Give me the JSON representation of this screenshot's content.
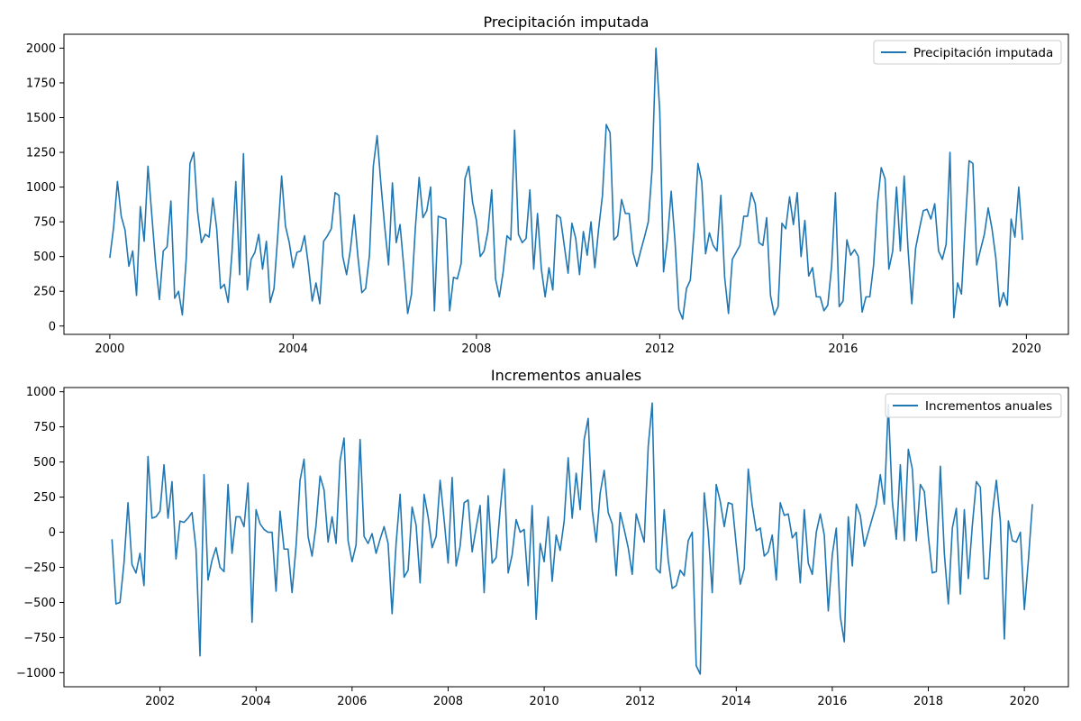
{
  "chart_data": [
    {
      "type": "line",
      "title": "Precipitación imputada",
      "xlabel": "",
      "ylabel": "",
      "x_start": "2000-01",
      "x_step": "month",
      "xlim": [
        "1999-01",
        "2020-12"
      ],
      "ylim": [
        -60,
        2100
      ],
      "xticks": [
        "2000",
        "2004",
        "2008",
        "2012",
        "2016",
        "2020"
      ],
      "yticks": [
        0,
        250,
        500,
        750,
        1000,
        1250,
        1500,
        1750,
        2000
      ],
      "legend": "top-right",
      "series": [
        {
          "name": "Precipitación imputada",
          "color": "#1f77b4",
          "values": [
            490,
            710,
            1040,
            790,
            690,
            430,
            540,
            220,
            860,
            610,
            1150,
            800,
            450,
            190,
            540,
            570,
            900,
            200,
            250,
            80,
            480,
            1170,
            1250,
            820,
            600,
            660,
            640,
            920,
            700,
            270,
            300,
            170,
            530,
            1040,
            370,
            1240,
            260,
            480,
            530,
            660,
            410,
            610,
            170,
            270,
            660,
            1080,
            720,
            600,
            420,
            530,
            540,
            650,
            440,
            180,
            310,
            160,
            610,
            650,
            700,
            960,
            940,
            500,
            370,
            550,
            800,
            490,
            240,
            270,
            510,
            1150,
            1370,
            1020,
            710,
            440,
            1030,
            600,
            730,
            420,
            90,
            230,
            700,
            1070,
            780,
            830,
            1000,
            110,
            790,
            780,
            770,
            110,
            350,
            340,
            450,
            1060,
            1150,
            890,
            760,
            500,
            540,
            680,
            980,
            340,
            210,
            390,
            650,
            620,
            1410,
            660,
            600,
            630,
            980,
            410,
            810,
            410,
            210,
            420,
            260,
            800,
            780,
            580,
            380,
            740,
            630,
            370,
            680,
            510,
            750,
            420,
            700,
            940,
            1450,
            1390,
            620,
            650,
            910,
            810,
            810,
            530,
            430,
            540,
            640,
            750,
            1130,
            2000,
            1550,
            390,
            620,
            970,
            610,
            120,
            50,
            270,
            330,
            690,
            1170,
            1040,
            520,
            670,
            580,
            540,
            940,
            350,
            90,
            480,
            530,
            580,
            790,
            790,
            960,
            880,
            600,
            580,
            780,
            220,
            80,
            140,
            740,
            700,
            930,
            730,
            960,
            500,
            760,
            360,
            420,
            210,
            210,
            110,
            150,
            430,
            960,
            140,
            180,
            620,
            510,
            550,
            500,
            100,
            210,
            210,
            440,
            880,
            1140,
            1060,
            410,
            540,
            1000,
            540,
            1080,
            560,
            160,
            560,
            700,
            830,
            840,
            770,
            880,
            540,
            480,
            590,
            1250,
            60,
            310,
            230,
            730,
            1190,
            1170,
            440,
            550,
            660,
            850,
            700,
            490,
            140,
            240,
            150,
            770,
            640,
            1000,
            620
          ]
        }
      ]
    },
    {
      "type": "line",
      "title": "Incrementos anuales",
      "xlabel": "",
      "ylabel": "",
      "x_start": "2001-01",
      "x_step": "month",
      "xlim": [
        "2000-01",
        "2020-12"
      ],
      "ylim": [
        -1100,
        1030
      ],
      "xticks": [
        "2002",
        "2004",
        "2006",
        "2008",
        "2010",
        "2012",
        "2014",
        "2016",
        "2018",
        "2020"
      ],
      "yticks": [
        -1000,
        -750,
        -500,
        -250,
        0,
        250,
        500,
        750,
        1000
      ],
      "legend": "top-right",
      "series": [
        {
          "name": "Incrementos anuales",
          "color": "#1f77b4",
          "values": [
            -50,
            -510,
            -500,
            -220,
            210,
            -230,
            -290,
            -150,
            -380,
            540,
            100,
            110,
            150,
            480,
            100,
            360,
            -190,
            80,
            70,
            100,
            140,
            -120,
            -880,
            410,
            -340,
            -200,
            -110,
            -250,
            -280,
            340,
            -150,
            110,
            110,
            40,
            350,
            -640,
            160,
            60,
            20,
            0,
            0,
            -420,
            150,
            -120,
            -120,
            -430,
            -100,
            370,
            520,
            -30,
            -170,
            50,
            400,
            300,
            -70,
            110,
            -80,
            510,
            670,
            -60,
            -210,
            -90,
            660,
            -30,
            -80,
            -10,
            -150,
            -50,
            40,
            -80,
            -580,
            -80,
            270,
            -320,
            -270,
            180,
            50,
            -360,
            270,
            110,
            -110,
            -30,
            370,
            90,
            -220,
            390,
            -240,
            -100,
            210,
            230,
            -140,
            30,
            190,
            -430,
            260,
            -220,
            -180,
            160,
            450,
            -290,
            -160,
            90,
            0,
            20,
            -380,
            190,
            -620,
            -80,
            -210,
            110,
            -350,
            -20,
            -130,
            80,
            530,
            100,
            420,
            160,
            660,
            810,
            160,
            -70,
            280,
            440,
            140,
            60,
            -310,
            140,
            20,
            -110,
            -300,
            130,
            30,
            -70,
            610,
            920,
            -260,
            -290,
            160,
            -200,
            -400,
            -380,
            -270,
            -310,
            -60,
            0,
            -950,
            -1010,
            280,
            0,
            -430,
            340,
            220,
            40,
            210,
            200,
            -90,
            -370,
            -260,
            450,
            190,
            10,
            30,
            -170,
            -140,
            -20,
            -340,
            210,
            120,
            130,
            -40,
            0,
            -360,
            160,
            -220,
            -300,
            0,
            130,
            -20,
            -560,
            -160,
            30,
            -600,
            -780,
            110,
            -240,
            200,
            120,
            -100,
            0,
            100,
            200,
            410,
            200,
            910,
            220,
            -50,
            480,
            -60,
            590,
            450,
            -60,
            340,
            290,
            -30,
            -290,
            -280,
            470,
            -150,
            -510,
            30,
            170,
            -440,
            160,
            -330,
            50,
            360,
            320,
            -330,
            -330,
            130,
            370,
            80,
            -760,
            80,
            -60,
            -70,
            0,
            -550,
            -200,
            200
          ]
        }
      ]
    }
  ]
}
